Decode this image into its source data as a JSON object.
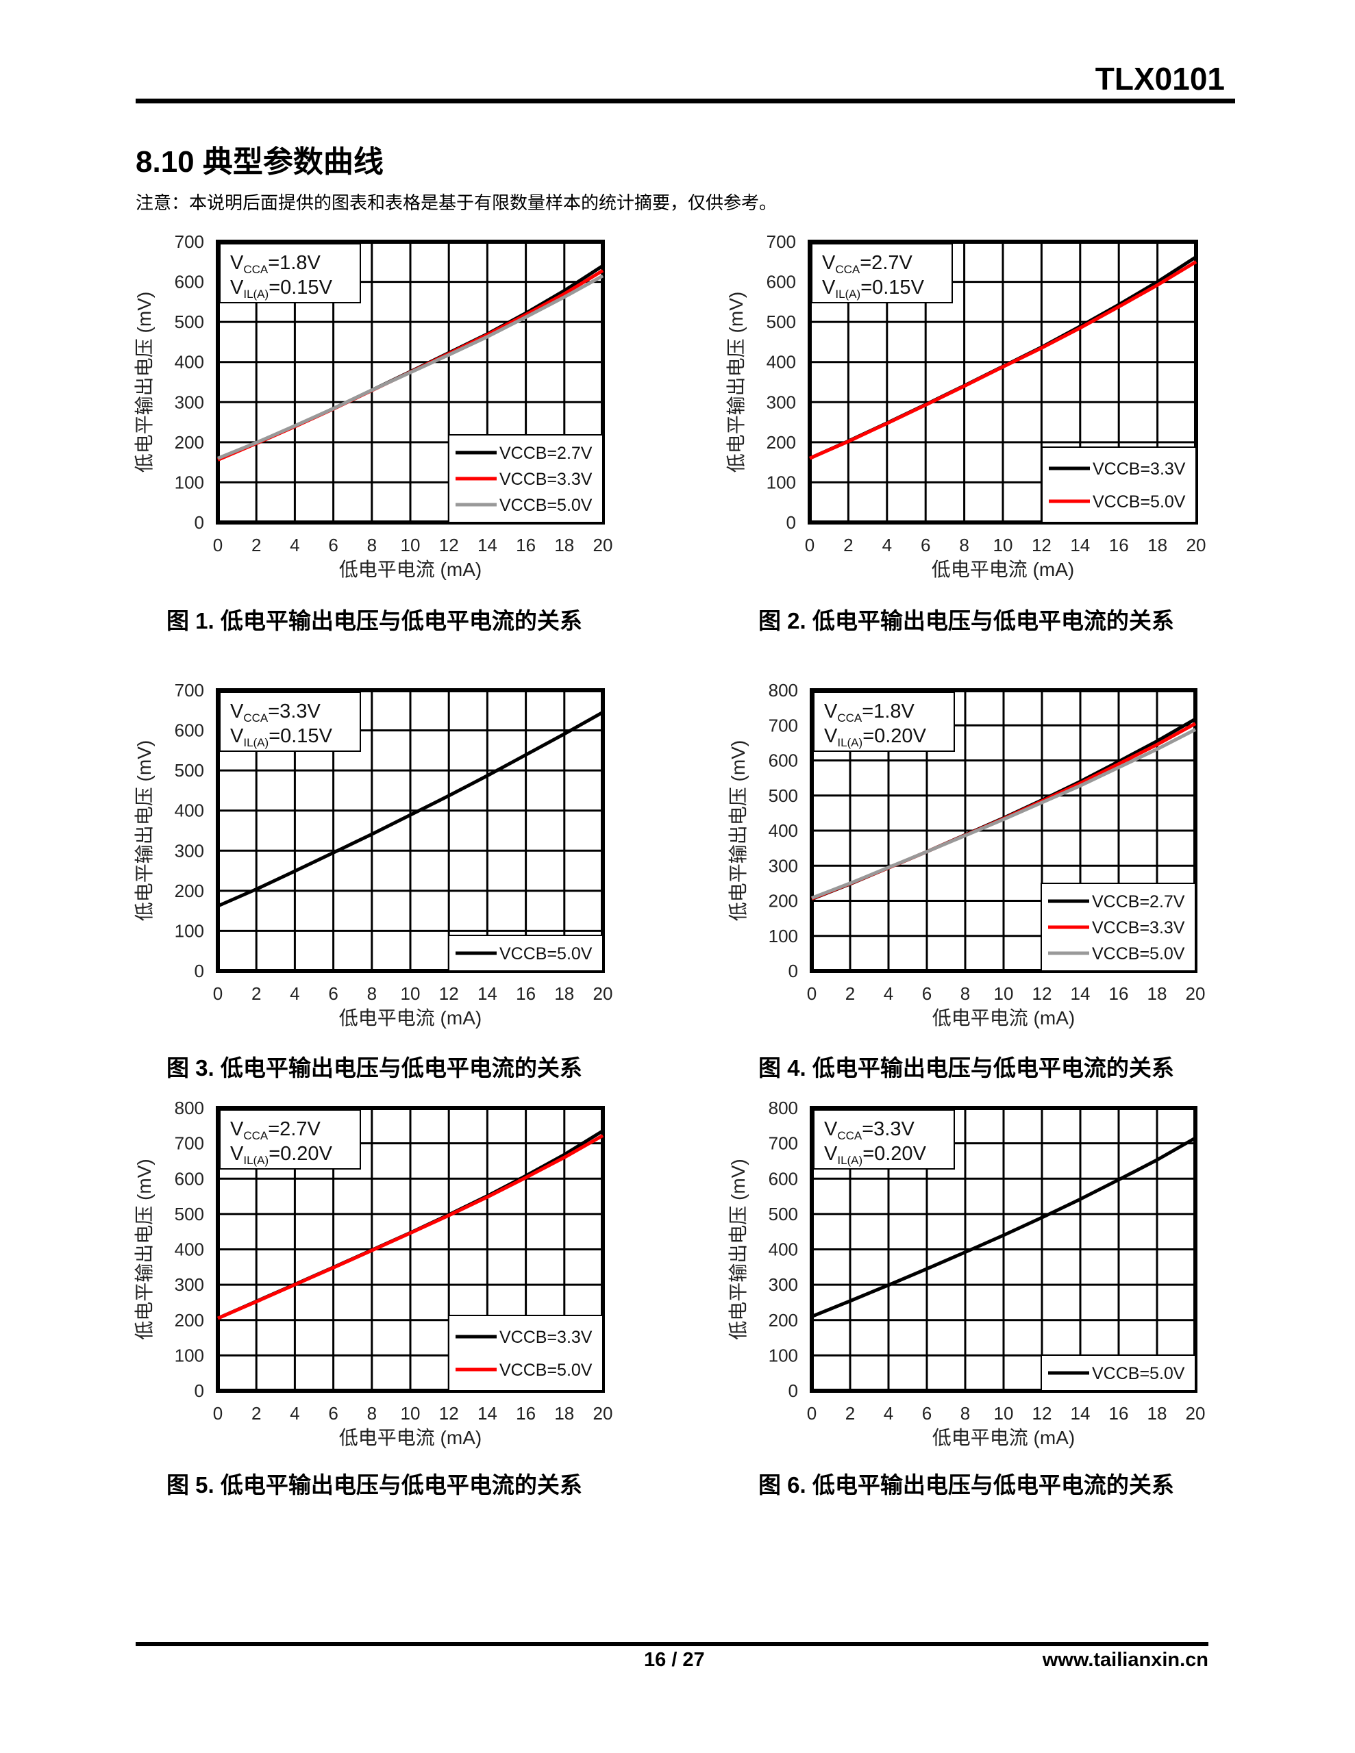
{
  "header": {
    "doc_id": "TLX0101"
  },
  "section": {
    "title": "8.10 典型参数曲线",
    "note": "注意：本说明后面提供的图表和表格是基于有限数量样本的统计摘要，仅供参考。"
  },
  "footer": {
    "page": "16 / 27",
    "site": "www.tailianxin.cn"
  },
  "colors": {
    "black": "#000000",
    "red": "#ff0000",
    "gray": "#999999"
  },
  "chart_data": [
    {
      "type": "line",
      "caption": "图 1. 低电平输出电压与低电平电流的关系",
      "xlabel": "低电平电流 (mA)",
      "ylabel": "低电平输出电压 (mV)",
      "xlim": [
        0,
        20
      ],
      "ylim": [
        0,
        700
      ],
      "xticks": [
        "0",
        "2",
        "4",
        "6",
        "8",
        "10",
        "12",
        "14",
        "16",
        "18",
        "20"
      ],
      "yticks": [
        "0",
        "100",
        "200",
        "300",
        "400",
        "500",
        "600",
        "700"
      ],
      "annotation": {
        "l1": "V",
        "l1_sub": "CCA",
        "l1_val": "=1.8V",
        "l2": "V",
        "l2_sub": "IL(A)",
        "l2_val": "=0.15V"
      },
      "legend": "bottom-right",
      "grid": true,
      "x": [
        0,
        2,
        4,
        6,
        8,
        10,
        12,
        14,
        16,
        18,
        20
      ],
      "series": [
        {
          "name": "VCCB=2.7V",
          "color": "#000000",
          "values": [
            158,
            198,
            240,
            284,
            330,
            376,
            423,
            470,
            522,
            578,
            640
          ]
        },
        {
          "name": "VCCB=3.3V",
          "color": "#ff0000",
          "values": [
            156,
            197,
            239,
            283,
            329,
            375,
            421,
            468,
            518,
            570,
            628
          ]
        },
        {
          "name": "VCCB=5.0V",
          "color": "#999999",
          "values": [
            160,
            199,
            241,
            284,
            330,
            374,
            418,
            463,
            512,
            562,
            615
          ]
        }
      ]
    },
    {
      "type": "line",
      "caption": "图 2. 低电平输出电压与低电平电流的关系",
      "xlabel": "低电平电流 (mA)",
      "ylabel": "低电平输出电压 (mV)",
      "xlim": [
        0,
        20
      ],
      "ylim": [
        0,
        700
      ],
      "xticks": [
        "0",
        "2",
        "4",
        "6",
        "8",
        "10",
        "12",
        "14",
        "16",
        "18",
        "20"
      ],
      "yticks": [
        "0",
        "100",
        "200",
        "300",
        "400",
        "500",
        "600",
        "700"
      ],
      "annotation": {
        "l1": "V",
        "l1_sub": "CCA",
        "l1_val": "=2.7V",
        "l2": "V",
        "l2_sub": "IL(A)",
        "l2_val": "=0.15V"
      },
      "legend": "bottom-right",
      "grid": true,
      "x": [
        0,
        2,
        4,
        6,
        8,
        10,
        12,
        14,
        16,
        18,
        20
      ],
      "series": [
        {
          "name": "VCCB=3.3V",
          "color": "#000000",
          "values": [
            160,
            203,
            248,
            294,
            341,
            389,
            437,
            489,
            543,
            600,
            662
          ]
        },
        {
          "name": "VCCB=5.0V",
          "color": "#ff0000",
          "values": [
            160,
            202,
            247,
            293,
            340,
            388,
            435,
            485,
            538,
            592,
            650
          ]
        }
      ]
    },
    {
      "type": "line",
      "caption": "图 3. 低电平输出电压与低电平电流的关系",
      "xlabel": "低电平电流 (mA)",
      "ylabel": "低电平输出电压 (mV)",
      "xlim": [
        0,
        20
      ],
      "ylim": [
        0,
        700
      ],
      "xticks": [
        "0",
        "2",
        "4",
        "6",
        "8",
        "10",
        "12",
        "14",
        "16",
        "18",
        "20"
      ],
      "yticks": [
        "0",
        "100",
        "200",
        "300",
        "400",
        "500",
        "600",
        "700"
      ],
      "annotation": {
        "l1": "V",
        "l1_sub": "CCA",
        "l1_val": "=3.3V",
        "l2": "V",
        "l2_sub": "IL(A)",
        "l2_val": "=0.15V"
      },
      "legend": "bottom-right",
      "grid": true,
      "x": [
        0,
        2,
        4,
        6,
        8,
        10,
        12,
        14,
        16,
        18,
        20
      ],
      "series": [
        {
          "name": "VCCB=5.0V",
          "color": "#000000",
          "values": [
            162,
            204,
            249,
            295,
            341,
            389,
            437,
            487,
            539,
            591,
            645
          ]
        }
      ]
    },
    {
      "type": "line",
      "caption": "图 4. 低电平输出电压与低电平电流的关系",
      "xlabel": "低电平电流 (mA)",
      "ylabel": "低电平输出电压 (mV)",
      "xlim": [
        0,
        20
      ],
      "ylim": [
        0,
        800
      ],
      "xticks": [
        "0",
        "2",
        "4",
        "6",
        "8",
        "10",
        "12",
        "14",
        "16",
        "18",
        "20"
      ],
      "yticks": [
        "0",
        "100",
        "200",
        "300",
        "400",
        "500",
        "600",
        "700",
        "800"
      ],
      "annotation": {
        "l1": "V",
        "l1_sub": "CCA",
        "l1_val": "=1.8V",
        "l2": "V",
        "l2_sub": "IL(A)",
        "l2_val": "=0.20V"
      },
      "legend": "bottom-right",
      "grid": true,
      "x": [
        0,
        2,
        4,
        6,
        8,
        10,
        12,
        14,
        16,
        18,
        20
      ],
      "series": [
        {
          "name": "VCCB=2.7V",
          "color": "#000000",
          "values": [
            205,
            248,
            294,
            340,
            388,
            436,
            487,
            540,
            597,
            655,
            718
          ]
        },
        {
          "name": "VCCB=3.3V",
          "color": "#ff0000",
          "values": [
            206,
            249,
            294,
            340,
            387,
            434,
            484,
            535,
            590,
            645,
            705
          ]
        },
        {
          "name": "VCCB=5.0V",
          "color": "#999999",
          "values": [
            208,
            250,
            295,
            340,
            386,
            432,
            480,
            528,
            580,
            632,
            688
          ]
        }
      ]
    },
    {
      "type": "line",
      "caption": "图 5. 低电平输出电压与低电平电流的关系",
      "xlabel": "低电平电流 (mA)",
      "ylabel": "低电平输出电压 (mV)",
      "xlim": [
        0,
        20
      ],
      "ylim": [
        0,
        800
      ],
      "xticks": [
        "0",
        "2",
        "4",
        "6",
        "8",
        "10",
        "12",
        "14",
        "16",
        "18",
        "20"
      ],
      "yticks": [
        "0",
        "100",
        "200",
        "300",
        "400",
        "500",
        "600",
        "700",
        "800"
      ],
      "annotation": {
        "l1": "V",
        "l1_sub": "CCA",
        "l1_val": "=2.7V",
        "l2": "V",
        "l2_sub": "IL(A)",
        "l2_val": "=0.20V"
      },
      "legend": "bottom-right",
      "grid": true,
      "x": [
        0,
        2,
        4,
        6,
        8,
        10,
        12,
        14,
        16,
        18,
        20
      ],
      "series": [
        {
          "name": "VCCB=3.3V",
          "color": "#000000",
          "values": [
            205,
            253,
            301,
            349,
            398,
            447,
            498,
            551,
            608,
            668,
            735
          ]
        },
        {
          "name": "VCCB=5.0V",
          "color": "#ff0000",
          "values": [
            205,
            252,
            300,
            348,
            397,
            446,
            496,
            548,
            603,
            660,
            722
          ]
        }
      ]
    },
    {
      "type": "line",
      "caption": "图 6. 低电平输出电压与低电平电流的关系",
      "xlabel": "低电平电流 (mA)",
      "ylabel": "低电平输出电压 (mV)",
      "xlim": [
        0,
        20
      ],
      "ylim": [
        0,
        800
      ],
      "xticks": [
        "0",
        "2",
        "4",
        "6",
        "8",
        "10",
        "12",
        "14",
        "16",
        "18",
        "20"
      ],
      "yticks": [
        "0",
        "100",
        "200",
        "300",
        "400",
        "500",
        "600",
        "700",
        "800"
      ],
      "annotation": {
        "l1": "V",
        "l1_sub": "CCA",
        "l1_val": "=3.3V",
        "l2": "V",
        "l2_sub": "IL(A)",
        "l2_val": "=0.20V"
      },
      "legend": "bottom-right",
      "grid": true,
      "x": [
        0,
        2,
        4,
        6,
        8,
        10,
        12,
        14,
        16,
        18,
        20
      ],
      "series": [
        {
          "name": "VCCB=5.0V",
          "color": "#000000",
          "values": [
            210,
            254,
            299,
            345,
            392,
            440,
            490,
            542,
            597,
            653,
            715
          ]
        }
      ]
    }
  ]
}
